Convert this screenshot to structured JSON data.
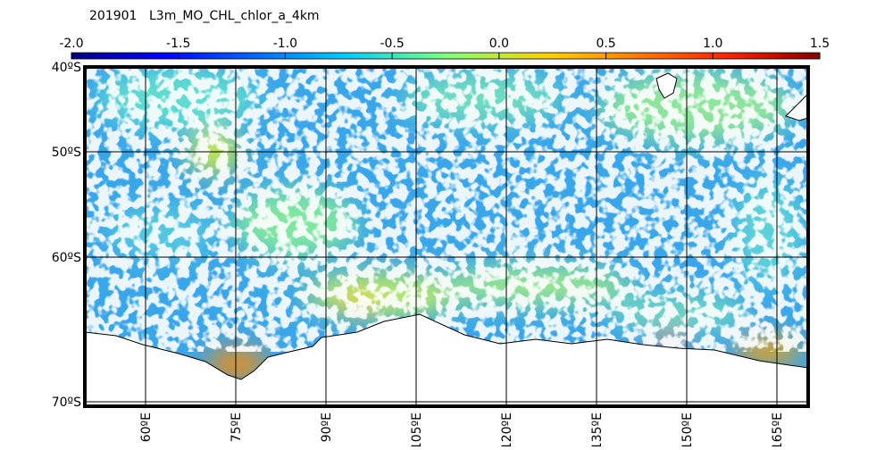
{
  "header": {
    "date": "201901",
    "product": "L3m_MO_CHL_chlor_a_4km"
  },
  "colorbar": {
    "tick_labels": [
      "-2.0",
      "-1.5",
      "-1.0",
      "-0.5",
      "0.0",
      "0.5",
      "1.0",
      "1.5"
    ]
  },
  "map": {
    "lat_labels": [
      "40ºS",
      "50ºS",
      "60ºS",
      "70ºS"
    ],
    "lon_labels": [
      "60ºE",
      "75ºE",
      "90ºE",
      "105ºE",
      "120ºE",
      "135ºE",
      "150ºE",
      "165ºE"
    ]
  }
}
